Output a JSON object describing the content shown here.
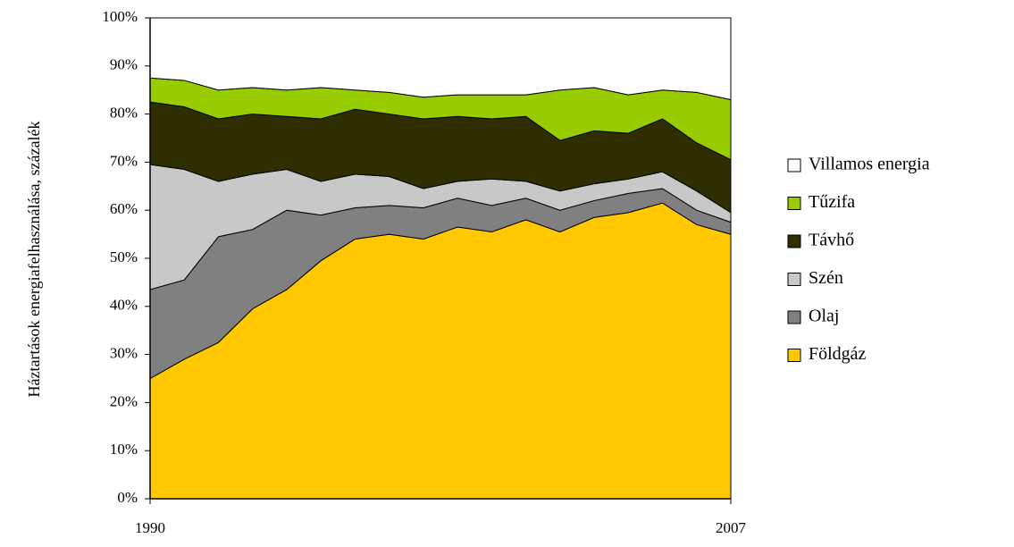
{
  "chart_data": {
    "type": "stacked_area",
    "y_label": "Háztartások energiafelhasználása,  százalék",
    "x": [
      1990,
      1991,
      1992,
      1993,
      1994,
      1995,
      1996,
      1997,
      1998,
      1999,
      2000,
      2001,
      2002,
      2003,
      2004,
      2005,
      2006,
      2007
    ],
    "xlim": [
      1990,
      2007
    ],
    "xticks": [
      1990,
      2007
    ],
    "ylim": [
      0,
      100
    ],
    "yticks": [
      {
        "value": 0,
        "label": "0%"
      },
      {
        "value": 10,
        "label": "10%"
      },
      {
        "value": 20,
        "label": "20%"
      },
      {
        "value": 30,
        "label": "30%"
      },
      {
        "value": 40,
        "label": "40%"
      },
      {
        "value": 50,
        "label": "50%"
      },
      {
        "value": 60,
        "label": "60%"
      },
      {
        "value": 70,
        "label": "70%"
      },
      {
        "value": 80,
        "label": "80%"
      },
      {
        "value": 90,
        "label": "90%"
      },
      {
        "value": 100,
        "label": "100%"
      }
    ],
    "series": [
      {
        "name": "Földgáz",
        "color": "#ffc800",
        "values": [
          25,
          29,
          32.5,
          39.5,
          43.5,
          49.5,
          54,
          55,
          54,
          56.5,
          55.5,
          58,
          55.5,
          58.5,
          59.5,
          61.5,
          57,
          55
        ]
      },
      {
        "name": "Olaj",
        "color": "#808080",
        "values": [
          18.5,
          16.5,
          22,
          16.5,
          16.5,
          9.5,
          6.5,
          6,
          6.5,
          6,
          5.5,
          4.5,
          4.5,
          3.5,
          4,
          3,
          3,
          2.5
        ]
      },
      {
        "name": "Szén",
        "color": "#c8c8c8",
        "values": [
          26,
          23,
          11.5,
          11.5,
          8.5,
          7,
          7,
          6,
          4,
          3.5,
          5.5,
          3.5,
          4,
          3.5,
          3,
          3.5,
          4,
          2
        ]
      },
      {
        "name": "Távhő",
        "color": "#2e2e00",
        "values": [
          13,
          13,
          13,
          12.5,
          11,
          13,
          13.5,
          13,
          14.5,
          13.5,
          12.5,
          13.5,
          10.5,
          11,
          9.5,
          11,
          10,
          11
        ]
      },
      {
        "name": "Tűzifa",
        "color": "#99cc00",
        "values": [
          5,
          5.5,
          6,
          5.5,
          5.5,
          6.5,
          4,
          4.5,
          4.5,
          4.5,
          5,
          4.5,
          10.5,
          9,
          8,
          6,
          10.5,
          12.5
        ]
      },
      {
        "name": "Villamos energia",
        "color": "#ffffff",
        "values": [
          12.5,
          13,
          15,
          14.5,
          15,
          14.5,
          15,
          15.5,
          16.5,
          16,
          16,
          16,
          15,
          14.5,
          16,
          15,
          15.5,
          17
        ]
      }
    ]
  }
}
